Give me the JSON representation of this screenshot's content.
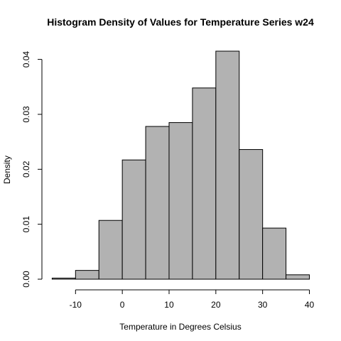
{
  "chart_data": {
    "type": "bar",
    "title": "Histogram Density of Values for Temperature Series w24",
    "xlabel": "Temperature in Degrees Celsius",
    "ylabel": "Density",
    "bins": [
      {
        "x0": -15,
        "x1": -10,
        "value": 0.0002
      },
      {
        "x0": -10,
        "x1": -5,
        "value": 0.0016
      },
      {
        "x0": -5,
        "x1": 0,
        "value": 0.0107
      },
      {
        "x0": 0,
        "x1": 5,
        "value": 0.0217
      },
      {
        "x0": 5,
        "x1": 10,
        "value": 0.0278
      },
      {
        "x0": 10,
        "x1": 15,
        "value": 0.0285
      },
      {
        "x0": 15,
        "x1": 20,
        "value": 0.0348
      },
      {
        "x0": 20,
        "x1": 25,
        "value": 0.0415
      },
      {
        "x0": 25,
        "x1": 30,
        "value": 0.0236
      },
      {
        "x0": 30,
        "x1": 35,
        "value": 0.0093
      },
      {
        "x0": 35,
        "x1": 40,
        "value": 0.0008
      }
    ],
    "xlim": [
      -15,
      40
    ],
    "ylim": [
      0,
      0.0415
    ],
    "xticks": [
      -10,
      0,
      10,
      20,
      30,
      40
    ],
    "xtick_labels": [
      "-10",
      "0",
      "10",
      "20",
      "30",
      "40"
    ],
    "yticks": [
      0,
      0.01,
      0.02,
      0.03,
      0.04
    ],
    "ytick_labels": [
      "0.00",
      "0.01",
      "0.02",
      "0.03",
      "0.04"
    ],
    "grid": false,
    "legend": "none"
  }
}
